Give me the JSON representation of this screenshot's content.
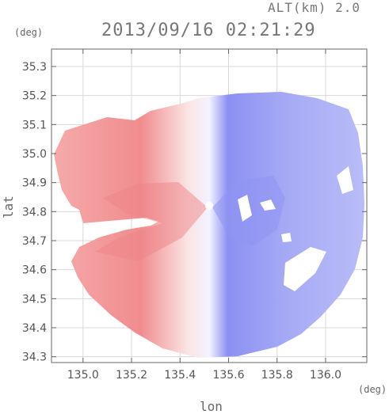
{
  "header": {
    "altitude": "ALT(km) 2.0",
    "timestamp": "2013/09/16 02:21:29"
  },
  "axes": {
    "y_unit": "(deg)",
    "x_unit": "(deg)",
    "y_label": "lat",
    "x_label": "lon"
  },
  "chart_data": {
    "type": "heatmap",
    "title": "2013/09/16 02:21:29",
    "xlabel": "lon",
    "ylabel": "lat",
    "xlim": [
      134.87,
      136.17
    ],
    "ylim": [
      34.28,
      35.36
    ],
    "x_ticks": [
      "135.0",
      "135.2",
      "135.4",
      "135.6",
      "135.8",
      "136.0"
    ],
    "x_tick_values": [
      135.0,
      135.2,
      135.4,
      135.6,
      135.8,
      136.0
    ],
    "y_ticks": [
      "34.3",
      "34.4",
      "34.5",
      "34.6",
      "34.7",
      "34.8",
      "34.9",
      "35.0",
      "35.1",
      "35.2",
      "35.3"
    ],
    "y_tick_values": [
      34.3,
      34.4,
      34.5,
      34.6,
      34.7,
      34.8,
      34.9,
      35.0,
      35.1,
      35.2,
      35.3
    ],
    "radar_center": [
      135.52,
      34.82
    ],
    "colors": {
      "approaching": "#7b7ff0",
      "receding": "#f07f82",
      "neutral": "#ffffff",
      "frame": "#666666",
      "grid": "#d8d8d8"
    }
  }
}
